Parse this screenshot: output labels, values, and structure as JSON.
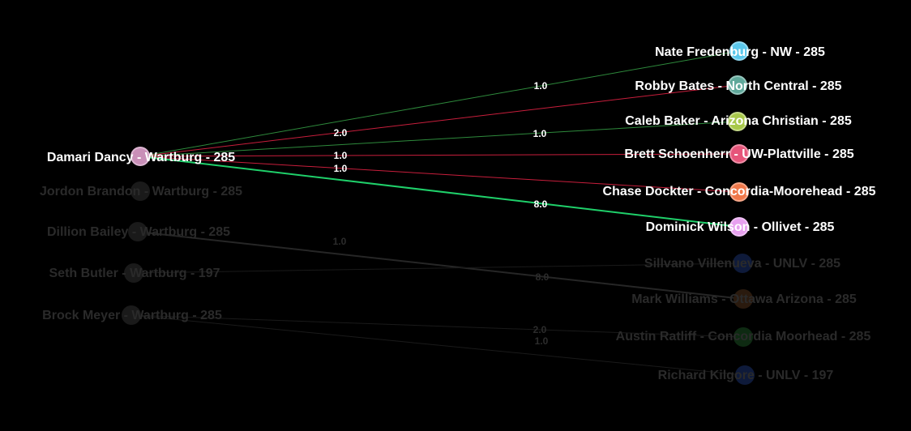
{
  "diagram": {
    "left_nodes": [
      {
        "id": "damari",
        "label": "Damari Dancy - Wartburg - 285",
        "color": "#c98fb8",
        "active": true
      },
      {
        "id": "jordon",
        "label": "Jordon Brandon - Wartburg - 285",
        "color": "#1a1a1a",
        "active": false
      },
      {
        "id": "dillion",
        "label": "Dillion Bailey - Wartburg - 285",
        "color": "#1a1a1a",
        "active": false
      },
      {
        "id": "seth",
        "label": "Seth Butler - Wartburg - 197",
        "color": "#1a1a1a",
        "active": false
      },
      {
        "id": "brock",
        "label": "Brock Meyer - Wartburg - 285",
        "color": "#1a1a1a",
        "active": false
      }
    ],
    "right_nodes": [
      {
        "id": "nate",
        "label": "Nate Fredenburg - NW - 285",
        "color": "#5bc8ec",
        "active": true
      },
      {
        "id": "robby",
        "label": "Robby Bates - North Central - 285",
        "color": "#5fa89a",
        "active": true
      },
      {
        "id": "caleb",
        "label": "Caleb Baker - Arizona Christian - 285",
        "color": "#a8c84a",
        "active": true
      },
      {
        "id": "brett",
        "label": "Brett Schoenherr - UW-Plattville - 285",
        "color": "#e6557a",
        "active": true
      },
      {
        "id": "chase",
        "label": "Chase Dockter - Concordia-Moorehead - 285",
        "color": "#f0784a",
        "active": true
      },
      {
        "id": "dominick",
        "label": "Dominick Wilson - Ollivet - 285",
        "color": "#e7a0ef",
        "active": true
      },
      {
        "id": "sillvano",
        "label": "Sillvano Villenueva - UNLV - 285",
        "color": "#0e1a3a",
        "active": false
      },
      {
        "id": "mark",
        "label": "Mark Williams - Ottawa Arizona - 285",
        "color": "#2a1a0e",
        "active": false
      },
      {
        "id": "austin",
        "label": "Austin Ratliff - Concordia Moorhead - 285",
        "color": "#0e2a12",
        "active": false
      },
      {
        "id": "richard",
        "label": "Richard Kilgore - UNLV - 197",
        "color": "#0e1a3a",
        "active": false
      }
    ],
    "edges": [
      {
        "from": "damari",
        "to": "nate",
        "weight": "1.0",
        "color": "#2e8a3c",
        "active": true
      },
      {
        "from": "damari",
        "to": "robby",
        "weight": "2.0",
        "color": "#c81e3c",
        "active": true
      },
      {
        "from": "damari",
        "to": "caleb",
        "weight": "1.0",
        "color": "#2e8a3c",
        "active": true
      },
      {
        "from": "damari",
        "to": "brett",
        "weight": "1.0",
        "color": "#c81e3c",
        "active": true
      },
      {
        "from": "damari",
        "to": "chase",
        "weight": "1.0",
        "color": "#c81e3c",
        "active": true
      },
      {
        "from": "damari",
        "to": "dominick",
        "weight": "8.0",
        "color": "#1fd06a",
        "active": true
      },
      {
        "from": "dillion",
        "to": "mark",
        "weight": "8.0",
        "color": "#262626",
        "active": false
      },
      {
        "from": "seth",
        "to": "sillvano",
        "weight": "1.0",
        "color": "#1a1a1a",
        "active": false
      },
      {
        "from": "brock",
        "to": "austin",
        "weight": "2.0",
        "color": "#1a1a1a",
        "active": false
      },
      {
        "from": "brock",
        "to": "richard",
        "weight": "1.0",
        "color": "#1a1a1a",
        "active": false
      }
    ]
  }
}
